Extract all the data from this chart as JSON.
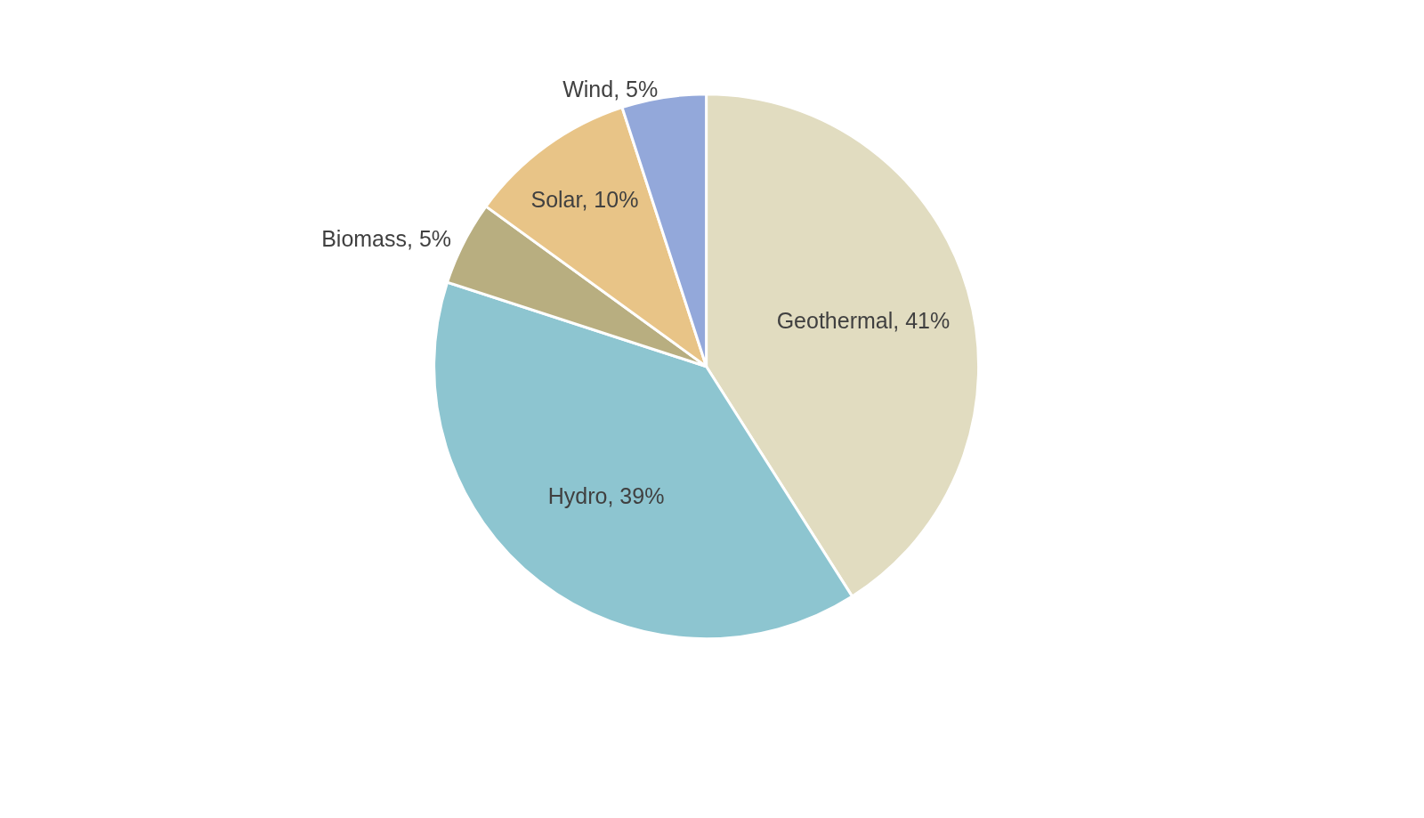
{
  "chart_data": {
    "type": "pie",
    "categories": [
      "Geothermal",
      "Hydro",
      "Biomass",
      "Solar",
      "Wind"
    ],
    "values": [
      41,
      39,
      5,
      10,
      5
    ],
    "value_labels": [
      "41%",
      "39%",
      "5%",
      "10%",
      "5%"
    ],
    "colors": [
      "#e1dcc0",
      "#8dc5d0",
      "#b8ae80",
      "#e8c487",
      "#93a8da"
    ],
    "legend": false
  }
}
